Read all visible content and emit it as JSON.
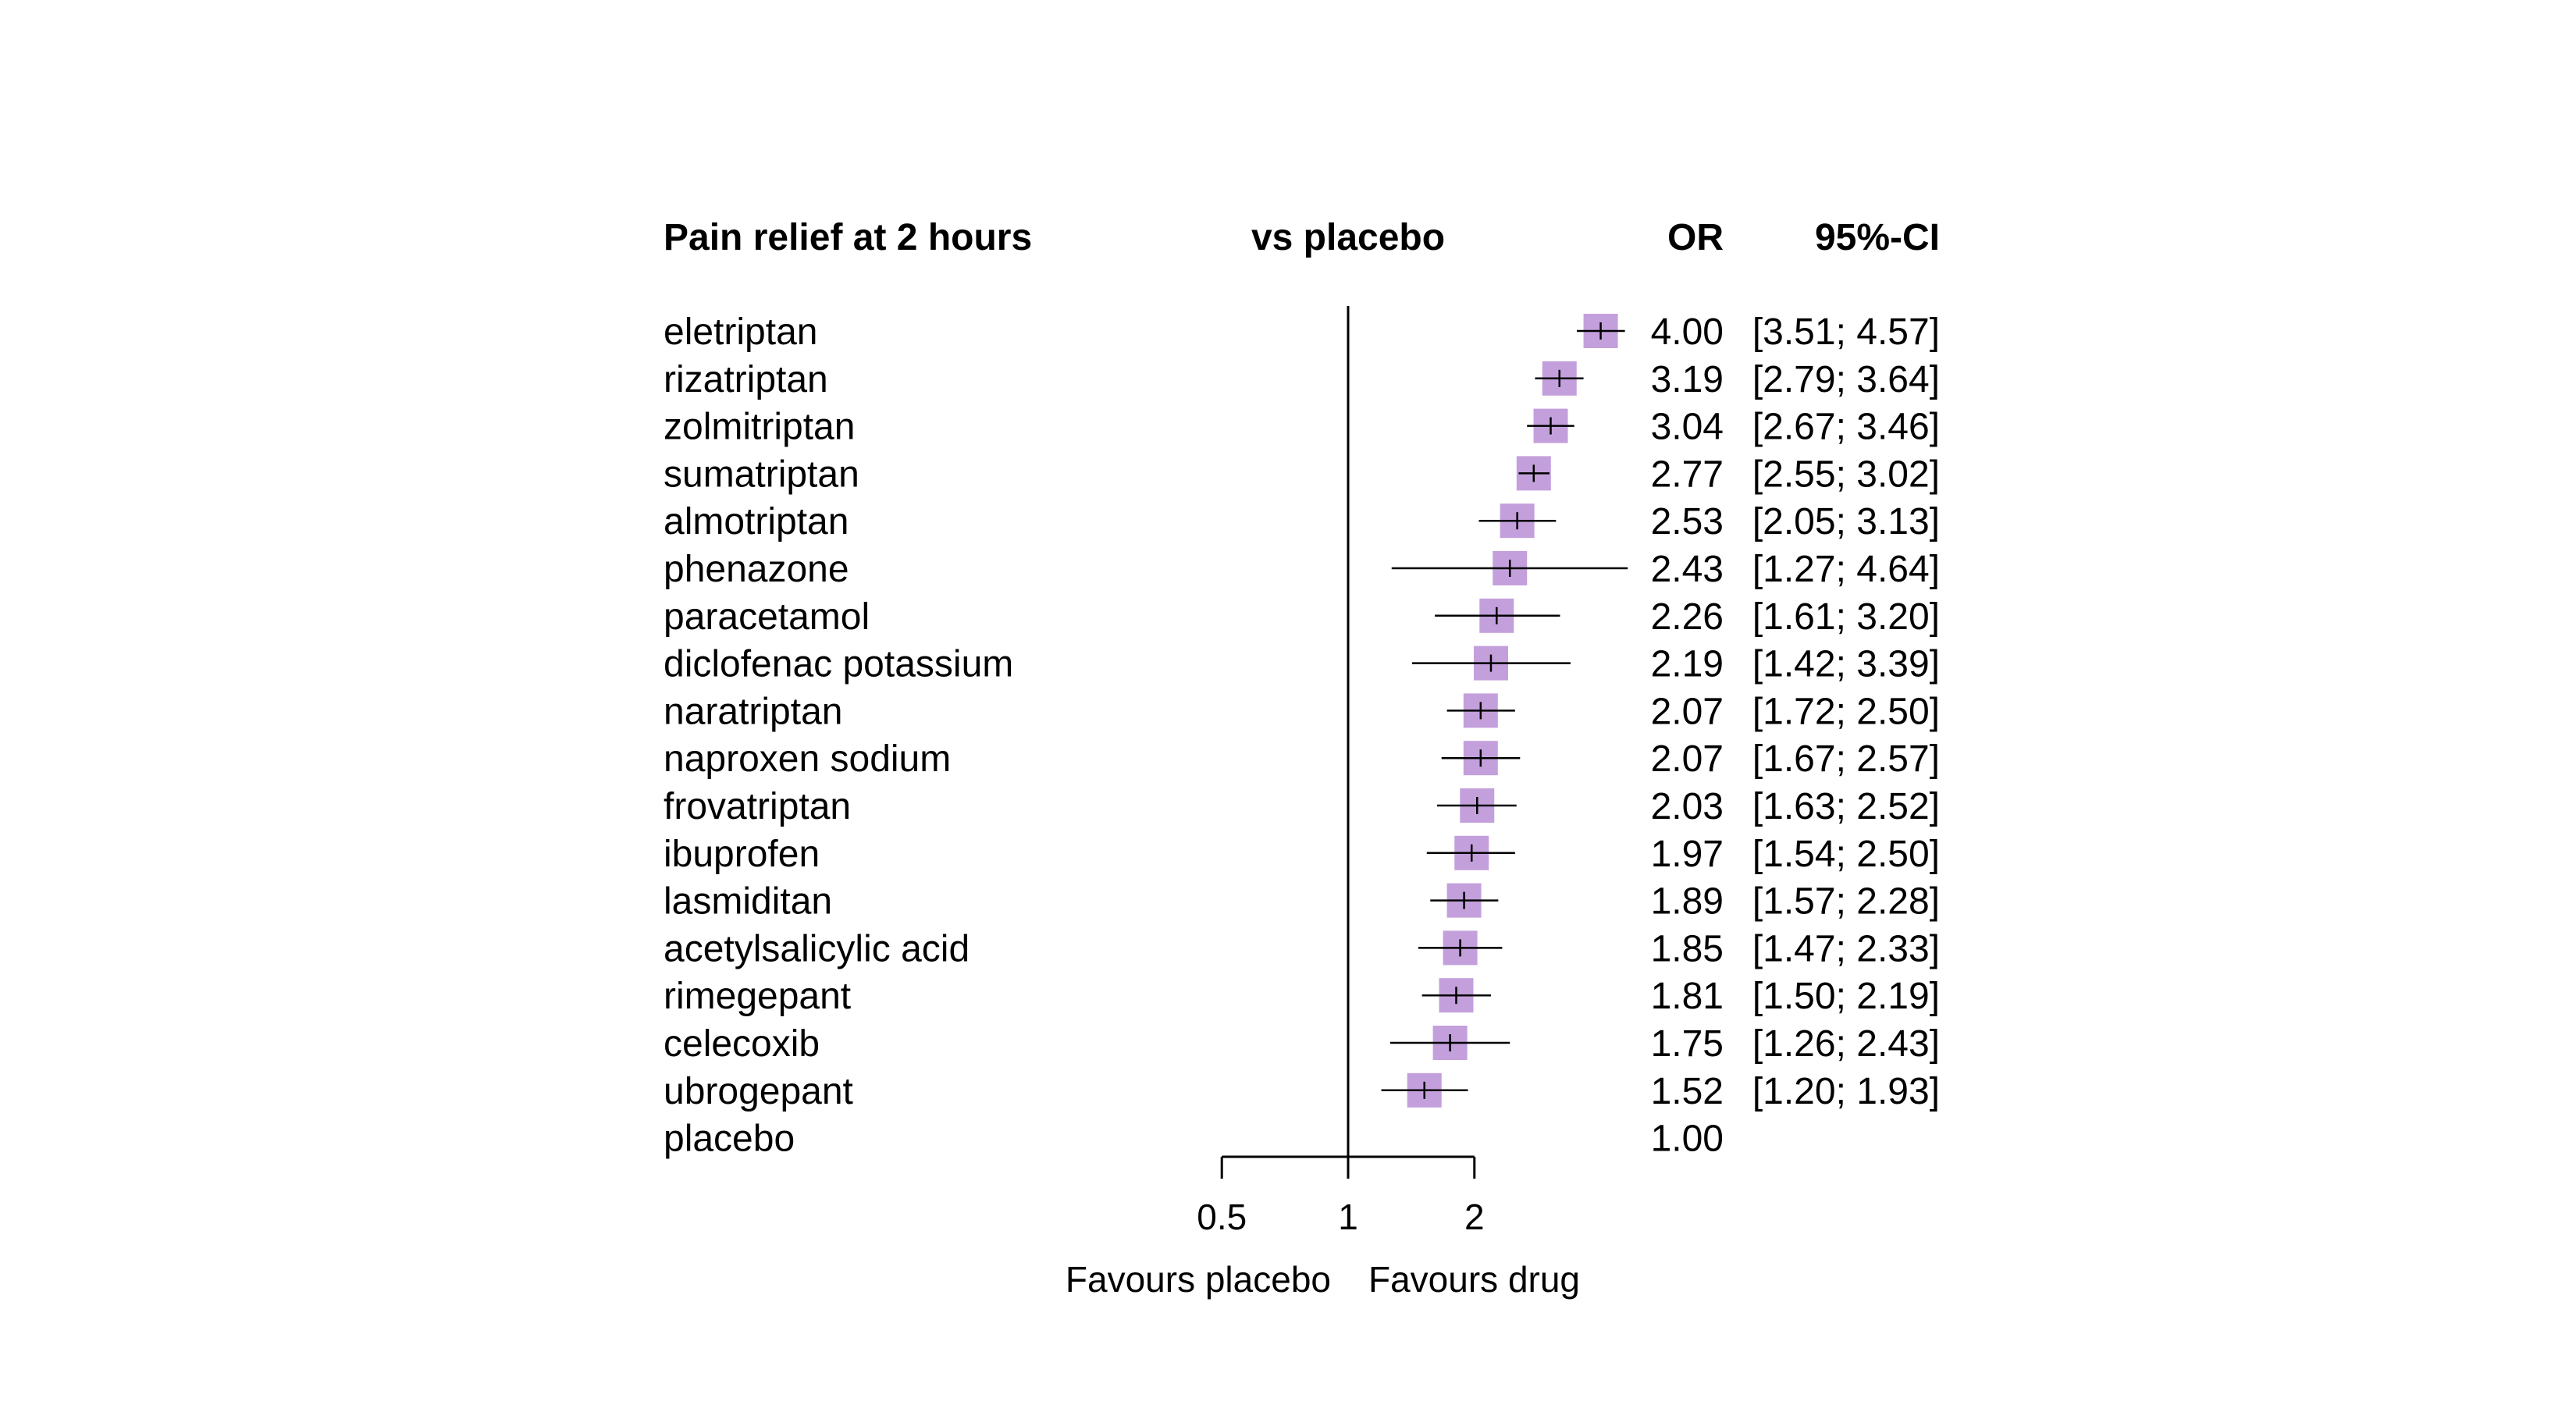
{
  "chart_data": {
    "type": "forest",
    "x_scale": "log",
    "reference_value": 1,
    "header": {
      "outcome": "Pain relief at 2 hours",
      "comparison": "vs placebo",
      "effect": "OR",
      "ci": "95%-CI"
    },
    "x_ticks": [
      {
        "value": 0.5,
        "label": "0.5"
      },
      {
        "value": 1,
        "label": "1"
      },
      {
        "value": 2,
        "label": "2"
      }
    ],
    "favours_left": "Favours placebo",
    "favours_right": "Favours drug",
    "square_color": "#c3a0dc",
    "treatments": [
      {
        "name": "eletriptan",
        "or": 4.0,
        "lower": 3.51,
        "upper": 4.57,
        "or_text": "4.00",
        "ci_text": "[3.51; 4.57]"
      },
      {
        "name": "rizatriptan",
        "or": 3.19,
        "lower": 2.79,
        "upper": 3.64,
        "or_text": "3.19",
        "ci_text": "[2.79; 3.64]"
      },
      {
        "name": "zolmitriptan",
        "or": 3.04,
        "lower": 2.67,
        "upper": 3.46,
        "or_text": "3.04",
        "ci_text": "[2.67; 3.46]"
      },
      {
        "name": "sumatriptan",
        "or": 2.77,
        "lower": 2.55,
        "upper": 3.02,
        "or_text": "2.77",
        "ci_text": "[2.55; 3.02]"
      },
      {
        "name": "almotriptan",
        "or": 2.53,
        "lower": 2.05,
        "upper": 3.13,
        "or_text": "2.53",
        "ci_text": "[2.05; 3.13]"
      },
      {
        "name": "phenazone",
        "or": 2.43,
        "lower": 1.27,
        "upper": 4.64,
        "or_text": "2.43",
        "ci_text": "[1.27; 4.64]"
      },
      {
        "name": "paracetamol",
        "or": 2.26,
        "lower": 1.61,
        "upper": 3.2,
        "or_text": "2.26",
        "ci_text": "[1.61; 3.20]"
      },
      {
        "name": "diclofenac potassium",
        "or": 2.19,
        "lower": 1.42,
        "upper": 3.39,
        "or_text": "2.19",
        "ci_text": "[1.42; 3.39]"
      },
      {
        "name": "naratriptan",
        "or": 2.07,
        "lower": 1.72,
        "upper": 2.5,
        "or_text": "2.07",
        "ci_text": "[1.72; 2.50]"
      },
      {
        "name": "naproxen sodium",
        "or": 2.07,
        "lower": 1.67,
        "upper": 2.57,
        "or_text": "2.07",
        "ci_text": "[1.67; 2.57]"
      },
      {
        "name": "frovatriptan",
        "or": 2.03,
        "lower": 1.63,
        "upper": 2.52,
        "or_text": "2.03",
        "ci_text": "[1.63; 2.52]"
      },
      {
        "name": "ibuprofen",
        "or": 1.97,
        "lower": 1.54,
        "upper": 2.5,
        "or_text": "1.97",
        "ci_text": "[1.54; 2.50]"
      },
      {
        "name": "lasmiditan",
        "or": 1.89,
        "lower": 1.57,
        "upper": 2.28,
        "or_text": "1.89",
        "ci_text": "[1.57; 2.28]"
      },
      {
        "name": "acetylsalicylic acid",
        "or": 1.85,
        "lower": 1.47,
        "upper": 2.33,
        "or_text": "1.85",
        "ci_text": "[1.47; 2.33]"
      },
      {
        "name": "rimegepant",
        "or": 1.81,
        "lower": 1.5,
        "upper": 2.19,
        "or_text": "1.81",
        "ci_text": "[1.50; 2.19]"
      },
      {
        "name": "celecoxib",
        "or": 1.75,
        "lower": 1.26,
        "upper": 2.43,
        "or_text": "1.75",
        "ci_text": "[1.26; 2.43]"
      },
      {
        "name": "ubrogepant",
        "or": 1.52,
        "lower": 1.2,
        "upper": 1.93,
        "or_text": "1.52",
        "ci_text": "[1.20; 1.93]"
      },
      {
        "name": "placebo",
        "or": 1.0,
        "lower": null,
        "upper": null,
        "or_text": "1.00",
        "ci_text": ""
      }
    ]
  }
}
